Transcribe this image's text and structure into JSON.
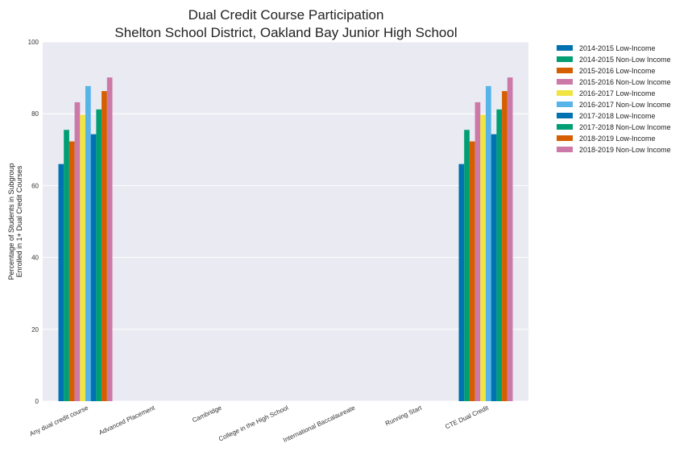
{
  "chart_data": {
    "type": "bar",
    "title": [
      "Dual Credit Course Participation",
      "Shelton School District, Oakland Bay Junior High School"
    ],
    "xlabel": "",
    "ylabel": [
      "Percentage of Students in Subgroup",
      "Enrolled in 1+ Dual Credit Courses"
    ],
    "ylim": [
      0,
      100
    ],
    "yticks": [
      0,
      20,
      40,
      60,
      80,
      100
    ],
    "grid": true,
    "legend_position": "outside-top-right",
    "categories": [
      "Any dual credit course",
      "Advanced Placement",
      "Cambridge",
      "College in the High School",
      "International Baccalaureate",
      "Running Start",
      "CTE Dual Credit"
    ],
    "series": [
      {
        "name": "2014-2015 Low-Income",
        "color": "#0072b2",
        "values": [
          66,
          null,
          null,
          null,
          null,
          null,
          66
        ]
      },
      {
        "name": "2014-2015 Non-Low Income",
        "color": "#009e73",
        "values": [
          75.5,
          null,
          null,
          null,
          null,
          null,
          75.5
        ]
      },
      {
        "name": "2015-2016 Low-Income",
        "color": "#d55e00",
        "values": [
          72.3,
          null,
          null,
          null,
          null,
          null,
          72.3
        ]
      },
      {
        "name": "2015-2016 Non-Low Income",
        "color": "#cc79a7",
        "values": [
          83.2,
          null,
          null,
          null,
          null,
          null,
          83.2
        ]
      },
      {
        "name": "2016-2017 Low-Income",
        "color": "#f0e442",
        "values": [
          79.7,
          null,
          null,
          null,
          null,
          null,
          79.7
        ]
      },
      {
        "name": "2016-2017 Non-Low Income",
        "color": "#56b4e9",
        "values": [
          87.7,
          null,
          null,
          null,
          null,
          null,
          87.7
        ]
      },
      {
        "name": "2017-2018 Low-Income",
        "color": "#0072b2",
        "values": [
          74.3,
          null,
          null,
          null,
          null,
          null,
          74.3
        ]
      },
      {
        "name": "2017-2018 Non-Low Income",
        "color": "#009e73",
        "values": [
          81.2,
          null,
          null,
          null,
          null,
          null,
          81.2
        ]
      },
      {
        "name": "2018-2019 Low-Income",
        "color": "#d55e00",
        "values": [
          86.3,
          null,
          null,
          null,
          null,
          null,
          86.3
        ]
      },
      {
        "name": "2018-2019 Non-Low Income",
        "color": "#cc79a7",
        "values": [
          90.1,
          null,
          null,
          null,
          null,
          null,
          90.1
        ]
      }
    ]
  }
}
